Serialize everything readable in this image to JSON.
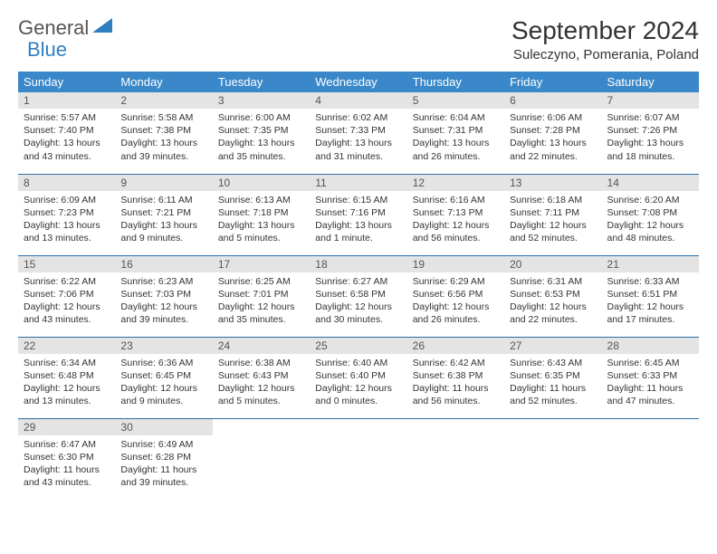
{
  "brand": {
    "part1": "General",
    "part2": "Blue",
    "icon_color": "#2f7fc1"
  },
  "title": "September 2024",
  "location": "Suleczyno, Pomerania, Poland",
  "colors": {
    "header_bg": "#3a88c9",
    "header_text": "#ffffff",
    "row_divider": "#2b6fa8",
    "daynum_bg": "#e4e4e4",
    "text": "#333333"
  },
  "day_headers": [
    "Sunday",
    "Monday",
    "Tuesday",
    "Wednesday",
    "Thursday",
    "Friday",
    "Saturday"
  ],
  "weeks": [
    [
      {
        "n": "1",
        "sr": "5:57 AM",
        "ss": "7:40 PM",
        "dl": "13 hours and 43 minutes."
      },
      {
        "n": "2",
        "sr": "5:58 AM",
        "ss": "7:38 PM",
        "dl": "13 hours and 39 minutes."
      },
      {
        "n": "3",
        "sr": "6:00 AM",
        "ss": "7:35 PM",
        "dl": "13 hours and 35 minutes."
      },
      {
        "n": "4",
        "sr": "6:02 AM",
        "ss": "7:33 PM",
        "dl": "13 hours and 31 minutes."
      },
      {
        "n": "5",
        "sr": "6:04 AM",
        "ss": "7:31 PM",
        "dl": "13 hours and 26 minutes."
      },
      {
        "n": "6",
        "sr": "6:06 AM",
        "ss": "7:28 PM",
        "dl": "13 hours and 22 minutes."
      },
      {
        "n": "7",
        "sr": "6:07 AM",
        "ss": "7:26 PM",
        "dl": "13 hours and 18 minutes."
      }
    ],
    [
      {
        "n": "8",
        "sr": "6:09 AM",
        "ss": "7:23 PM",
        "dl": "13 hours and 13 minutes."
      },
      {
        "n": "9",
        "sr": "6:11 AM",
        "ss": "7:21 PM",
        "dl": "13 hours and 9 minutes."
      },
      {
        "n": "10",
        "sr": "6:13 AM",
        "ss": "7:18 PM",
        "dl": "13 hours and 5 minutes."
      },
      {
        "n": "11",
        "sr": "6:15 AM",
        "ss": "7:16 PM",
        "dl": "13 hours and 1 minute."
      },
      {
        "n": "12",
        "sr": "6:16 AM",
        "ss": "7:13 PM",
        "dl": "12 hours and 56 minutes."
      },
      {
        "n": "13",
        "sr": "6:18 AM",
        "ss": "7:11 PM",
        "dl": "12 hours and 52 minutes."
      },
      {
        "n": "14",
        "sr": "6:20 AM",
        "ss": "7:08 PM",
        "dl": "12 hours and 48 minutes."
      }
    ],
    [
      {
        "n": "15",
        "sr": "6:22 AM",
        "ss": "7:06 PM",
        "dl": "12 hours and 43 minutes."
      },
      {
        "n": "16",
        "sr": "6:23 AM",
        "ss": "7:03 PM",
        "dl": "12 hours and 39 minutes."
      },
      {
        "n": "17",
        "sr": "6:25 AM",
        "ss": "7:01 PM",
        "dl": "12 hours and 35 minutes."
      },
      {
        "n": "18",
        "sr": "6:27 AM",
        "ss": "6:58 PM",
        "dl": "12 hours and 30 minutes."
      },
      {
        "n": "19",
        "sr": "6:29 AM",
        "ss": "6:56 PM",
        "dl": "12 hours and 26 minutes."
      },
      {
        "n": "20",
        "sr": "6:31 AM",
        "ss": "6:53 PM",
        "dl": "12 hours and 22 minutes."
      },
      {
        "n": "21",
        "sr": "6:33 AM",
        "ss": "6:51 PM",
        "dl": "12 hours and 17 minutes."
      }
    ],
    [
      {
        "n": "22",
        "sr": "6:34 AM",
        "ss": "6:48 PM",
        "dl": "12 hours and 13 minutes."
      },
      {
        "n": "23",
        "sr": "6:36 AM",
        "ss": "6:45 PM",
        "dl": "12 hours and 9 minutes."
      },
      {
        "n": "24",
        "sr": "6:38 AM",
        "ss": "6:43 PM",
        "dl": "12 hours and 5 minutes."
      },
      {
        "n": "25",
        "sr": "6:40 AM",
        "ss": "6:40 PM",
        "dl": "12 hours and 0 minutes."
      },
      {
        "n": "26",
        "sr": "6:42 AM",
        "ss": "6:38 PM",
        "dl": "11 hours and 56 minutes."
      },
      {
        "n": "27",
        "sr": "6:43 AM",
        "ss": "6:35 PM",
        "dl": "11 hours and 52 minutes."
      },
      {
        "n": "28",
        "sr": "6:45 AM",
        "ss": "6:33 PM",
        "dl": "11 hours and 47 minutes."
      }
    ],
    [
      {
        "n": "29",
        "sr": "6:47 AM",
        "ss": "6:30 PM",
        "dl": "11 hours and 43 minutes."
      },
      {
        "n": "30",
        "sr": "6:49 AM",
        "ss": "6:28 PM",
        "dl": "11 hours and 39 minutes."
      },
      null,
      null,
      null,
      null,
      null
    ]
  ],
  "labels": {
    "sunrise": "Sunrise:",
    "sunset": "Sunset:",
    "daylight": "Daylight:"
  }
}
